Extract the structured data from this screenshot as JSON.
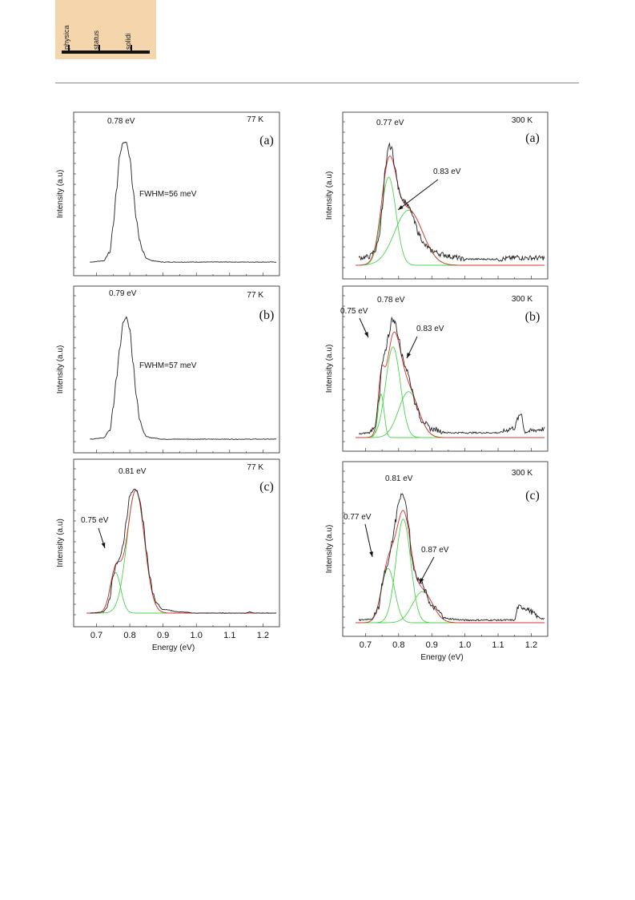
{
  "logo": {
    "words": [
      "physica",
      "status",
      "solidi"
    ]
  },
  "chart_data": [
    {
      "id": "77K-a",
      "type": "line",
      "temperature": "77 K",
      "panel_letter": "(a)",
      "peaks": [
        {
          "label": "0.78 eV",
          "x": 0.78
        }
      ],
      "note": "FWHM=56 meV",
      "ylabel": "Intensity (a.u)",
      "xlabel": "",
      "xlim": [
        0.67,
        1.24
      ],
      "ylim": [
        0,
        1.12
      ],
      "xticks": [],
      "fits": [],
      "series": [
        {
          "x": [
            0.68,
            0.72,
            0.74,
            0.75,
            0.76,
            0.77,
            0.78,
            0.79,
            0.8,
            0.81,
            0.82,
            0.83,
            0.84,
            0.85,
            0.87,
            0.9,
            1.0,
            1.24
          ],
          "y": [
            0.0,
            0.01,
            0.08,
            0.3,
            0.6,
            0.9,
            1.0,
            1.0,
            0.88,
            0.6,
            0.35,
            0.18,
            0.08,
            0.03,
            0.01,
            0.0,
            0.0,
            0.0
          ]
        }
      ]
    },
    {
      "id": "77K-b",
      "type": "line",
      "temperature": "77 K",
      "panel_letter": "(b)",
      "peaks": [
        {
          "label": "0.79 eV",
          "x": 0.79
        }
      ],
      "note": "FWHM=57 meV",
      "ylabel": "Intensity (a.u)",
      "xlabel": "",
      "xlim": [
        0.67,
        1.24
      ],
      "ylim": [
        0,
        1.12
      ],
      "xticks": [],
      "fits": [],
      "series": [
        {
          "x": [
            0.68,
            0.72,
            0.74,
            0.75,
            0.76,
            0.77,
            0.78,
            0.79,
            0.8,
            0.81,
            0.82,
            0.83,
            0.84,
            0.85,
            0.87,
            0.9,
            1.0,
            1.24
          ],
          "y": [
            0.0,
            0.01,
            0.07,
            0.25,
            0.5,
            0.75,
            0.95,
            1.0,
            0.9,
            0.62,
            0.35,
            0.16,
            0.07,
            0.02,
            0.01,
            0.0,
            0.0,
            0.0
          ]
        }
      ]
    },
    {
      "id": "77K-c",
      "type": "line",
      "temperature": "77 K",
      "panel_letter": "(c)",
      "peaks": [
        {
          "label": "0.81 eV",
          "x": 0.815
        },
        {
          "label": "0.75 eV",
          "x": 0.755
        }
      ],
      "note": "",
      "ylabel": "Intensity (a.u)",
      "xlabel": "Energy (eV)",
      "xlim": [
        0.67,
        1.24
      ],
      "ylim": [
        0,
        1.12
      ],
      "xticks": [
        "0.7",
        "0.8",
        "0.9",
        "1.0",
        "1.1",
        "1.2"
      ],
      "fits": [
        {
          "center": 0.757,
          "amp": 0.33,
          "sigma": 0.016
        },
        {
          "center": 0.818,
          "amp": 1.0,
          "sigma": 0.026
        }
      ],
      "series": [
        {
          "x": [
            0.68,
            0.72,
            0.73,
            0.74,
            0.75,
            0.76,
            0.77,
            0.78,
            0.79,
            0.8,
            0.81,
            0.82,
            0.83,
            0.84,
            0.85,
            0.86,
            0.87,
            0.88,
            0.9,
            0.95,
            1.0,
            1.15,
            1.16,
            1.17,
            1.24
          ],
          "y": [
            0.0,
            0.01,
            0.04,
            0.12,
            0.3,
            0.4,
            0.45,
            0.55,
            0.75,
            0.95,
            1.0,
            1.0,
            0.92,
            0.75,
            0.5,
            0.3,
            0.16,
            0.08,
            0.03,
            0.01,
            0.0,
            0.0,
            0.01,
            0.0,
            0.0
          ]
        }
      ]
    },
    {
      "id": "300K-a",
      "type": "line",
      "temperature": "300 K",
      "panel_letter": "(a)",
      "peaks": [
        {
          "label": "0.77 eV",
          "x": 0.775
        },
        {
          "label": "0.83 eV",
          "x": 0.83
        }
      ],
      "note": "",
      "ylabel": "Intensity (a.u)",
      "xlabel": "",
      "xlim": [
        0.67,
        1.24
      ],
      "ylim": [
        0,
        1.12
      ],
      "xticks": [],
      "fits": [
        {
          "center": 0.77,
          "amp": 0.72,
          "sigma": 0.022
        },
        {
          "center": 0.83,
          "amp": 0.45,
          "sigma": 0.042
        }
      ],
      "series": [
        {
          "x": [
            0.68,
            0.71,
            0.73,
            0.74,
            0.75,
            0.76,
            0.77,
            0.78,
            0.79,
            0.8,
            0.81,
            0.82,
            0.83,
            0.84,
            0.85,
            0.86,
            0.88,
            0.9,
            0.93,
            0.96,
            1.0,
            1.1,
            1.15,
            1.16,
            1.17,
            1.24
          ],
          "y": [
            0.06,
            0.07,
            0.12,
            0.22,
            0.45,
            0.78,
            0.98,
            0.95,
            0.78,
            0.62,
            0.55,
            0.52,
            0.48,
            0.42,
            0.34,
            0.26,
            0.16,
            0.12,
            0.09,
            0.07,
            0.05,
            0.05,
            0.06,
            0.07,
            0.06,
            0.06
          ]
        }
      ]
    },
    {
      "id": "300K-b",
      "type": "line",
      "temperature": "300 K",
      "panel_letter": "(b)",
      "peaks": [
        {
          "label": "0.78 eV",
          "x": 0.785
        },
        {
          "label": "0.75 eV",
          "x": 0.745
        },
        {
          "label": "0.83 eV",
          "x": 0.83
        }
      ],
      "note": "",
      "ylabel": "Intensity (a.u)",
      "xlabel": "",
      "xlim": [
        0.67,
        1.24
      ],
      "ylim": [
        0,
        1.12
      ],
      "xticks": [],
      "fits": [
        {
          "center": 0.747,
          "amp": 0.36,
          "sigma": 0.009
        },
        {
          "center": 0.783,
          "amp": 0.75,
          "sigma": 0.022
        },
        {
          "center": 0.83,
          "amp": 0.38,
          "sigma": 0.03
        }
      ],
      "series": [
        {
          "x": [
            0.68,
            0.71,
            0.73,
            0.74,
            0.75,
            0.76,
            0.77,
            0.78,
            0.79,
            0.8,
            0.81,
            0.82,
            0.83,
            0.84,
            0.85,
            0.87,
            0.9,
            0.95,
            1.0,
            1.1,
            1.15,
            1.16,
            1.17,
            1.18,
            1.24
          ],
          "y": [
            0.03,
            0.04,
            0.1,
            0.3,
            0.6,
            0.72,
            0.85,
            0.98,
            0.95,
            0.82,
            0.68,
            0.6,
            0.52,
            0.4,
            0.28,
            0.14,
            0.07,
            0.04,
            0.04,
            0.04,
            0.08,
            0.16,
            0.2,
            0.05,
            0.07
          ]
        }
      ]
    },
    {
      "id": "300K-c",
      "type": "line",
      "temperature": "300 K",
      "panel_letter": "(c)",
      "peaks": [
        {
          "label": "0.81 eV",
          "x": 0.81
        },
        {
          "label": "0.77 eV",
          "x": 0.765
        },
        {
          "label": "0.87 eV",
          "x": 0.87
        }
      ],
      "note": "",
      "ylabel": "Intensity (a.u)",
      "xlabel": "Energy (eV)",
      "xlim": [
        0.67,
        1.24
      ],
      "ylim": [
        0,
        1.12
      ],
      "xticks": [
        "0.7",
        "0.8",
        "0.9",
        "1.0",
        "1.1",
        "1.2"
      ],
      "fits": [
        {
          "center": 0.768,
          "amp": 0.42,
          "sigma": 0.02
        },
        {
          "center": 0.814,
          "amp": 0.8,
          "sigma": 0.022
        },
        {
          "center": 0.872,
          "amp": 0.24,
          "sigma": 0.03
        }
      ],
      "series": [
        {
          "x": [
            0.68,
            0.72,
            0.74,
            0.75,
            0.76,
            0.77,
            0.78,
            0.79,
            0.8,
            0.81,
            0.82,
            0.83,
            0.84,
            0.85,
            0.86,
            0.87,
            0.88,
            0.9,
            0.95,
            1.0,
            1.1,
            1.15,
            1.16,
            1.17,
            1.24
          ],
          "y": [
            0.02,
            0.03,
            0.12,
            0.3,
            0.4,
            0.48,
            0.62,
            0.78,
            0.94,
            1.0,
            0.95,
            0.75,
            0.5,
            0.38,
            0.33,
            0.3,
            0.24,
            0.12,
            0.03,
            0.02,
            0.02,
            0.02,
            0.12,
            0.12,
            0.03
          ]
        }
      ]
    }
  ]
}
